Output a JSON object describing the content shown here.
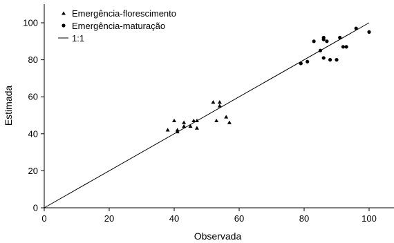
{
  "chart_data": {
    "type": "scatter",
    "xlabel": "Observada",
    "ylabel": "Estimada",
    "xlim": [
      0,
      108
    ],
    "ylim": [
      0,
      110
    ],
    "xticks": [
      "0",
      "20",
      "40",
      "60",
      "80",
      "100"
    ],
    "yticks": [
      "0",
      "20",
      "40",
      "60",
      "80",
      "100"
    ],
    "grid": false,
    "legend_position": "top-left",
    "series": [
      {
        "name": "Emergência-florescimento",
        "marker": "triangle",
        "points": [
          {
            "x": 38,
            "y": 42
          },
          {
            "x": 40,
            "y": 47
          },
          {
            "x": 41,
            "y": 42
          },
          {
            "x": 41,
            "y": 41
          },
          {
            "x": 43,
            "y": 44
          },
          {
            "x": 43,
            "y": 46
          },
          {
            "x": 45,
            "y": 44
          },
          {
            "x": 46,
            "y": 47
          },
          {
            "x": 47,
            "y": 43
          },
          {
            "x": 47,
            "y": 47
          },
          {
            "x": 52,
            "y": 57
          },
          {
            "x": 53,
            "y": 47
          },
          {
            "x": 54,
            "y": 55
          },
          {
            "x": 54,
            "y": 57
          },
          {
            "x": 56,
            "y": 49
          },
          {
            "x": 57,
            "y": 46
          }
        ]
      },
      {
        "name": "Emergência-maturação",
        "marker": "circle",
        "points": [
          {
            "x": 79,
            "y": 78
          },
          {
            "x": 81,
            "y": 79
          },
          {
            "x": 83,
            "y": 90
          },
          {
            "x": 85,
            "y": 85
          },
          {
            "x": 86,
            "y": 92
          },
          {
            "x": 86,
            "y": 91
          },
          {
            "x": 86,
            "y": 81
          },
          {
            "x": 87,
            "y": 90
          },
          {
            "x": 88,
            "y": 80
          },
          {
            "x": 90,
            "y": 80
          },
          {
            "x": 91,
            "y": 92
          },
          {
            "x": 92,
            "y": 87
          },
          {
            "x": 93,
            "y": 87
          },
          {
            "x": 96,
            "y": 97
          },
          {
            "x": 100,
            "y": 95
          }
        ]
      }
    ],
    "reference_line": {
      "name": "1:1",
      "from": {
        "x": 0,
        "y": 0
      },
      "to": {
        "x": 100,
        "y": 100
      }
    }
  }
}
